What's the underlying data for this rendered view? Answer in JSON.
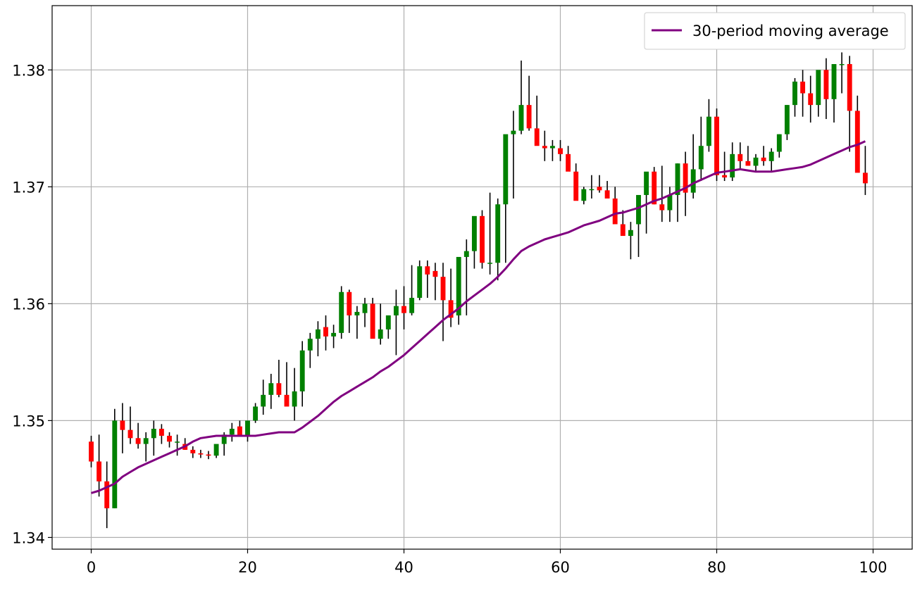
{
  "chart_data": {
    "type": "candlestick",
    "title": "",
    "xlabel": "",
    "ylabel": "",
    "xlim": [
      -5,
      105
    ],
    "ylim": [
      1.339,
      1.3855
    ],
    "grid": true,
    "legend_placement": "top-right",
    "x_ticks": [
      0,
      20,
      40,
      60,
      80,
      100
    ],
    "x_tick_labels": [
      "0",
      "20",
      "40",
      "60",
      "80",
      "100"
    ],
    "y_ticks": [
      1.34,
      1.35,
      1.36,
      1.37,
      1.38
    ],
    "y_tick_labels": [
      "1.34",
      "1.35",
      "1.36",
      "1.37",
      "1.38"
    ],
    "colors": {
      "up": "#008000",
      "down": "#ff0000",
      "wick": "#000000",
      "moving_average": "#800080",
      "grid": "#b0b0b0"
    },
    "series": [
      {
        "name": "30-period moving average",
        "kind": "line",
        "color": "#800080"
      }
    ],
    "candles": {
      "open": [
        1.3482,
        1.3465,
        1.3448,
        1.3425,
        1.35,
        1.3492,
        1.3485,
        1.348,
        1.3485,
        1.3493,
        1.3487,
        1.3482,
        1.348,
        1.3475,
        1.3472,
        1.3471,
        1.347,
        1.348,
        1.3488,
        1.3495,
        1.3487,
        1.35,
        1.3512,
        1.3522,
        1.3532,
        1.3522,
        1.3512,
        1.3525,
        1.356,
        1.357,
        1.358,
        1.3572,
        1.3575,
        1.361,
        1.359,
        1.3592,
        1.36,
        1.357,
        1.3578,
        1.359,
        1.3598,
        1.3592,
        1.3605,
        1.3632,
        1.3628,
        1.3623,
        1.3603,
        1.359,
        1.364,
        1.3645,
        1.3675,
        1.3635,
        1.3635,
        1.3685,
        1.3745,
        1.3748,
        1.377,
        1.375,
        1.3735,
        1.3733,
        1.3733,
        1.3728,
        1.3713,
        1.3688,
        1.3698,
        1.37,
        1.3697,
        1.369,
        1.3668,
        1.3658,
        1.3668,
        1.3693,
        1.3713,
        1.3685,
        1.368,
        1.3693,
        1.372,
        1.3695,
        1.3715,
        1.3735,
        1.376,
        1.371,
        1.3708,
        1.3728,
        1.3722,
        1.3718,
        1.3725,
        1.3722,
        1.373,
        1.3745,
        1.377,
        1.379,
        1.378,
        1.377,
        1.38,
        1.3775,
        1.3805,
        1.3805,
        1.3765,
        1.3712
      ],
      "high": [
        1.3487,
        1.3488,
        1.3465,
        1.351,
        1.3515,
        1.3512,
        1.3498,
        1.349,
        1.35,
        1.3497,
        1.349,
        1.3488,
        1.3485,
        1.3478,
        1.3475,
        1.3474,
        1.3473,
        1.349,
        1.3498,
        1.35,
        1.35,
        1.3515,
        1.3535,
        1.354,
        1.3552,
        1.355,
        1.3545,
        1.3568,
        1.3575,
        1.3585,
        1.359,
        1.3582,
        1.3615,
        1.3612,
        1.3598,
        1.3605,
        1.3605,
        1.36,
        1.359,
        1.3612,
        1.3615,
        1.3633,
        1.3637,
        1.3637,
        1.3635,
        1.3635,
        1.363,
        1.3628,
        1.3655,
        1.3665,
        1.368,
        1.3695,
        1.369,
        1.37,
        1.3765,
        1.3808,
        1.3795,
        1.3778,
        1.3748,
        1.374,
        1.374,
        1.3735,
        1.372,
        1.37,
        1.371,
        1.371,
        1.3705,
        1.37,
        1.368,
        1.367,
        1.367,
        1.3698,
        1.3717,
        1.3718,
        1.37,
        1.372,
        1.373,
        1.3745,
        1.376,
        1.3775,
        1.3767,
        1.373,
        1.3738,
        1.3738,
        1.3735,
        1.3728,
        1.3735,
        1.3733,
        1.3745,
        1.377,
        1.3793,
        1.38,
        1.3795,
        1.379,
        1.381,
        1.3805,
        1.3815,
        1.3812,
        1.3778,
        1.3735
      ],
      "low": [
        1.346,
        1.3435,
        1.3408,
        1.3425,
        1.3472,
        1.348,
        1.3476,
        1.3465,
        1.347,
        1.348,
        1.3477,
        1.347,
        1.3475,
        1.3468,
        1.3468,
        1.3467,
        1.3468,
        1.347,
        1.3482,
        1.349,
        1.3482,
        1.3498,
        1.3505,
        1.351,
        1.352,
        1.3515,
        1.35,
        1.3512,
        1.3545,
        1.3555,
        1.356,
        1.3562,
        1.357,
        1.3575,
        1.357,
        1.358,
        1.3575,
        1.3565,
        1.357,
        1.3556,
        1.3578,
        1.359,
        1.3603,
        1.3605,
        1.3603,
        1.3568,
        1.358,
        1.3582,
        1.359,
        1.363,
        1.363,
        1.3625,
        1.362,
        1.3635,
        1.369,
        1.3745,
        1.3748,
        1.374,
        1.3722,
        1.3722,
        1.3722,
        1.3715,
        1.3705,
        1.3685,
        1.369,
        1.3695,
        1.3692,
        1.3678,
        1.366,
        1.3638,
        1.364,
        1.366,
        1.3685,
        1.367,
        1.367,
        1.367,
        1.3675,
        1.369,
        1.3705,
        1.373,
        1.3705,
        1.3705,
        1.3705,
        1.3715,
        1.3718,
        1.3713,
        1.3718,
        1.3713,
        1.3725,
        1.374,
        1.376,
        1.376,
        1.3755,
        1.376,
        1.3758,
        1.3755,
        1.378,
        1.373,
        1.376,
        1.3693
      ],
      "close": [
        1.3465,
        1.3448,
        1.3425,
        1.35,
        1.3492,
        1.3485,
        1.348,
        1.3485,
        1.3493,
        1.3487,
        1.3482,
        1.3482,
        1.3475,
        1.3472,
        1.3471,
        1.347,
        1.348,
        1.3488,
        1.3493,
        1.3487,
        1.35,
        1.3512,
        1.3522,
        1.3532,
        1.3522,
        1.3512,
        1.3525,
        1.356,
        1.357,
        1.3578,
        1.3572,
        1.3575,
        1.361,
        1.359,
        1.3593,
        1.36,
        1.357,
        1.3578,
        1.359,
        1.3598,
        1.3592,
        1.3605,
        1.3632,
        1.3625,
        1.3623,
        1.3603,
        1.3588,
        1.364,
        1.3645,
        1.3675,
        1.3635,
        1.3635,
        1.3685,
        1.3745,
        1.3748,
        1.377,
        1.375,
        1.3735,
        1.3733,
        1.3735,
        1.3728,
        1.3713,
        1.3688,
        1.3698,
        1.3698,
        1.3697,
        1.369,
        1.3668,
        1.3658,
        1.3663,
        1.3693,
        1.3713,
        1.3685,
        1.368,
        1.3693,
        1.372,
        1.3695,
        1.3715,
        1.3735,
        1.376,
        1.371,
        1.3708,
        1.3728,
        1.3722,
        1.3718,
        1.3725,
        1.3722,
        1.373,
        1.3745,
        1.377,
        1.379,
        1.378,
        1.377,
        1.38,
        1.3775,
        1.3805,
        1.3805,
        1.3765,
        1.3712,
        1.3703
      ]
    },
    "moving_average": [
      1.3438,
      1.344,
      1.3443,
      1.3446,
      1.3452,
      1.3456,
      1.346,
      1.3463,
      1.3466,
      1.3469,
      1.3472,
      1.3475,
      1.3478,
      1.3482,
      1.3485,
      1.3486,
      1.3487,
      1.3487,
      1.3487,
      1.3487,
      1.3487,
      1.3487,
      1.3488,
      1.3489,
      1.349,
      1.349,
      1.349,
      1.3494,
      1.3499,
      1.3504,
      1.351,
      1.3516,
      1.3521,
      1.3525,
      1.3529,
      1.3533,
      1.3537,
      1.3542,
      1.3546,
      1.3551,
      1.3556,
      1.3562,
      1.3568,
      1.3574,
      1.358,
      1.3586,
      1.3591,
      1.3596,
      1.3602,
      1.3607,
      1.3612,
      1.3617,
      1.3623,
      1.363,
      1.3638,
      1.3645,
      1.3649,
      1.3652,
      1.3655,
      1.3657,
      1.3659,
      1.3661,
      1.3664,
      1.3667,
      1.3669,
      1.3671,
      1.3674,
      1.3677,
      1.3678,
      1.368,
      1.3682,
      1.3685,
      1.3688,
      1.369,
      1.3693,
      1.3696,
      1.3699,
      1.3703,
      1.3706,
      1.3709,
      1.3712,
      1.3713,
      1.3714,
      1.3715,
      1.3714,
      1.3713,
      1.3713,
      1.3713,
      1.3714,
      1.3715,
      1.3716,
      1.3717,
      1.3719,
      1.3722,
      1.3725,
      1.3728,
      1.3731,
      1.3734,
      1.3736,
      1.3739
    ]
  }
}
